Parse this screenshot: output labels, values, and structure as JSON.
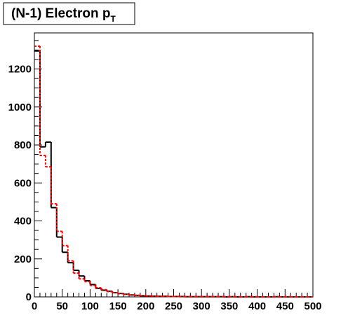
{
  "chart_data": {
    "type": "histogram",
    "title": "(N-1) Electron p",
    "title_subscript": "T",
    "bins": [
      0,
      10,
      20,
      30,
      40,
      50,
      60,
      70,
      80,
      90,
      100,
      110,
      120,
      130,
      140,
      150,
      160,
      170,
      180,
      190,
      200,
      210,
      220,
      230,
      240,
      250,
      260,
      270,
      280,
      290,
      300,
      310,
      320,
      330,
      340,
      350,
      360,
      370,
      380,
      390,
      400,
      410,
      420,
      430,
      440,
      450,
      460,
      470,
      480,
      490,
      500
    ],
    "series": [
      {
        "color": "#000000",
        "dashed": false,
        "values": [
          1295,
          790,
          815,
          470,
          315,
          235,
          180,
          140,
          110,
          85,
          65,
          45,
          35,
          30,
          22,
          18,
          14,
          10,
          8,
          6,
          5,
          4,
          3,
          3,
          2,
          2,
          2,
          1,
          1,
          1,
          1,
          1,
          1,
          1,
          0,
          1,
          0,
          0,
          1,
          0,
          0,
          0,
          0,
          1,
          0,
          0,
          0,
          0,
          0,
          0
        ]
      },
      {
        "color": "#ff0000",
        "dashed": true,
        "values": [
          1320,
          745,
          685,
          490,
          345,
          270,
          190,
          125,
          95,
          80,
          60,
          48,
          38,
          28,
          22,
          17,
          13,
          10,
          8,
          6,
          5,
          4,
          3,
          3,
          2,
          2,
          1,
          1,
          1,
          1,
          1,
          1,
          1,
          1,
          1,
          0,
          1,
          0,
          0,
          1,
          0,
          0,
          0,
          0,
          0,
          1,
          0,
          0,
          0,
          0
        ]
      }
    ],
    "xlim": [
      0,
      500
    ],
    "xticks": [
      0,
      50,
      100,
      150,
      200,
      250,
      300,
      350,
      400,
      450,
      500
    ],
    "ylim": [
      0,
      1390
    ],
    "yticks": [
      0,
      200,
      400,
      600,
      800,
      1000,
      1200
    ]
  }
}
